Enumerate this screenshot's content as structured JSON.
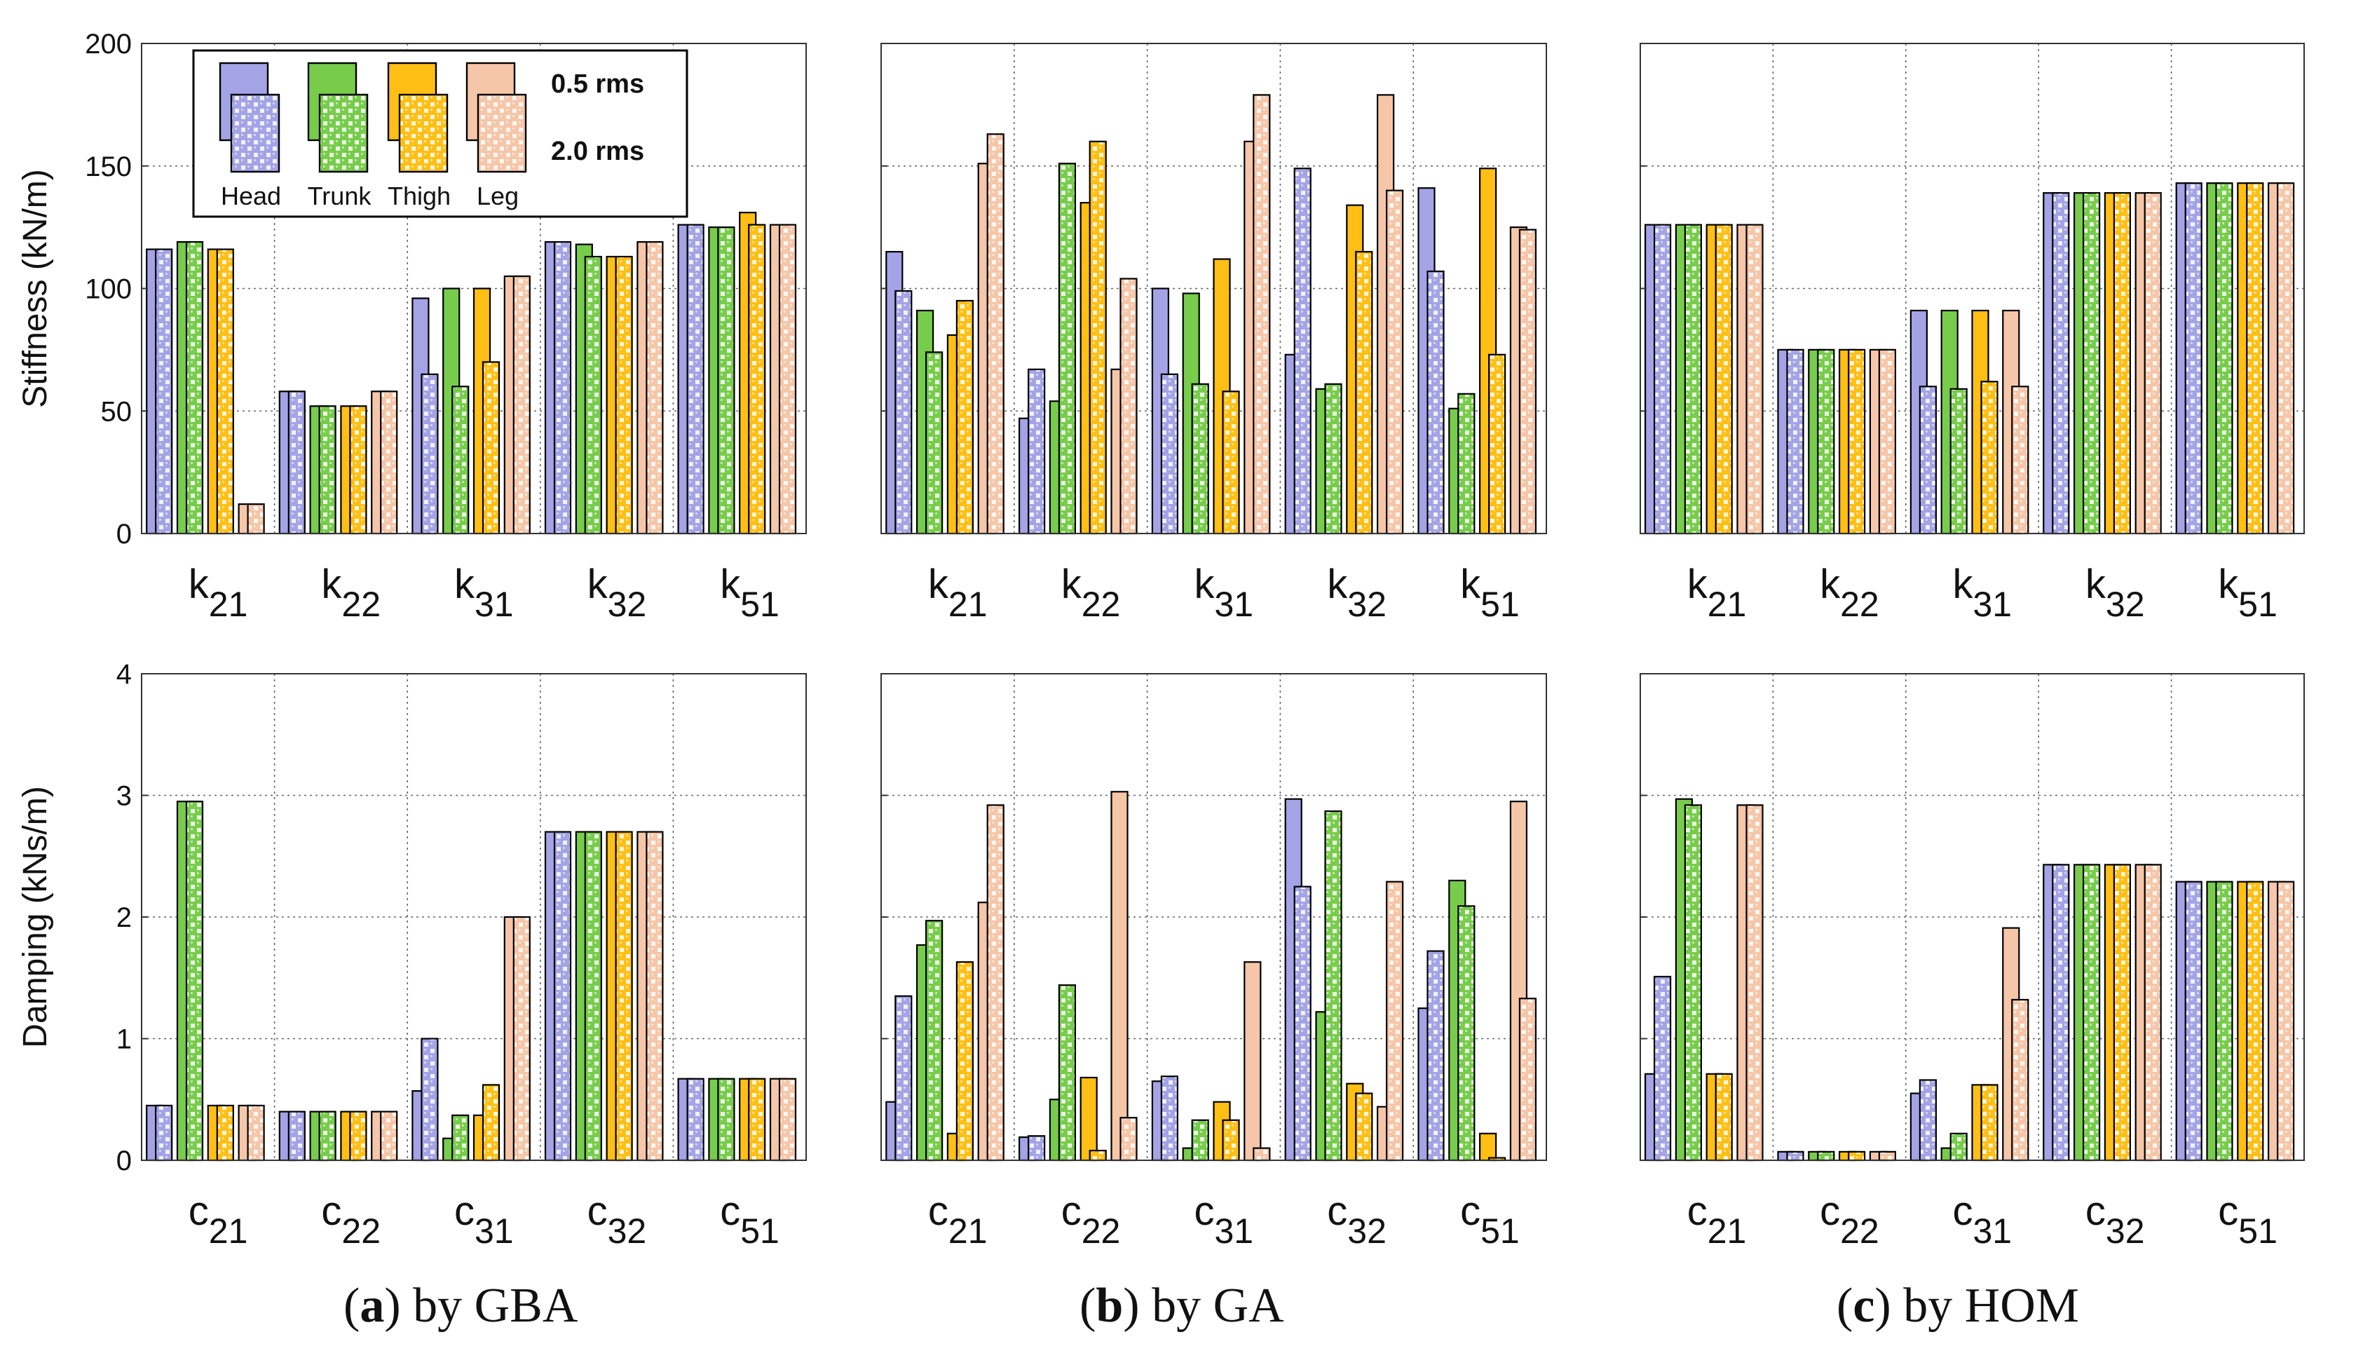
{
  "figure": {
    "legend": {
      "groups": [
        "Head",
        "Trunk",
        "Thigh",
        "Leg"
      ],
      "levels": [
        "0.5 rms",
        "2.0 rms"
      ]
    },
    "colors": {
      "Head": "#a3a3e6",
      "Trunk": "#78cc4c",
      "Thigh": "#ffbf14",
      "Leg": "#f6c6a8",
      "pattern_light": "#ffffff",
      "grid": "#666666",
      "frame": "#000000"
    },
    "row_labels": {
      "stiffness": "Stiffness (kN/m)",
      "damping": "Damping (kNs/m)"
    },
    "captions": [
      {
        "letter": "a",
        "open": "(",
        "close": ")",
        "text": " by GBA"
      },
      {
        "letter": "b",
        "open": "(",
        "close": ")",
        "text": " by GA"
      },
      {
        "letter": "c",
        "open": "(",
        "close": ")",
        "text": " by HOM"
      }
    ]
  },
  "chart_data": [
    {
      "id": "stiffness-gba",
      "type": "bar",
      "row": 0,
      "col": 0,
      "ylabel": "Stiffness (kN/m)",
      "ylim": [
        0,
        200
      ],
      "yticks": [
        0,
        50,
        100,
        150,
        200
      ],
      "grid": true,
      "legend_position": "top-left",
      "categories": [
        {
          "base": "k",
          "sub": "21"
        },
        {
          "base": "k",
          "sub": "22"
        },
        {
          "base": "k",
          "sub": "31"
        },
        {
          "base": "k",
          "sub": "32"
        },
        {
          "base": "k",
          "sub": "51"
        }
      ],
      "series": [
        {
          "name": "Head 0.5 rms",
          "group": "Head",
          "level": "0.5 rms",
          "values": [
            116,
            58,
            96,
            119,
            126
          ]
        },
        {
          "name": "Head 2.0 rms",
          "group": "Head",
          "level": "2.0 rms",
          "values": [
            116,
            58,
            65,
            119,
            126
          ]
        },
        {
          "name": "Trunk 0.5 rms",
          "group": "Trunk",
          "level": "0.5 rms",
          "values": [
            119,
            52,
            100,
            118,
            125
          ]
        },
        {
          "name": "Trunk 2.0 rms",
          "group": "Trunk",
          "level": "2.0 rms",
          "values": [
            119,
            52,
            60,
            113,
            125
          ]
        },
        {
          "name": "Thigh 0.5 rms",
          "group": "Thigh",
          "level": "0.5 rms",
          "values": [
            116,
            52,
            100,
            113,
            131
          ]
        },
        {
          "name": "Thigh 2.0 rms",
          "group": "Thigh",
          "level": "2.0 rms",
          "values": [
            116,
            52,
            70,
            113,
            126
          ]
        },
        {
          "name": "Leg 0.5 rms",
          "group": "Leg",
          "level": "0.5 rms",
          "values": [
            12,
            58,
            105,
            119,
            126
          ]
        },
        {
          "name": "Leg 2.0 rms",
          "group": "Leg",
          "level": "2.0 rms",
          "values": [
            12,
            58,
            105,
            119,
            126
          ]
        }
      ]
    },
    {
      "id": "stiffness-ga",
      "type": "bar",
      "row": 0,
      "col": 1,
      "ylabel": "",
      "ylim": [
        0,
        200
      ],
      "yticks": [
        0,
        50,
        100,
        150,
        200
      ],
      "grid": true,
      "categories": [
        {
          "base": "k",
          "sub": "21"
        },
        {
          "base": "k",
          "sub": "22"
        },
        {
          "base": "k",
          "sub": "31"
        },
        {
          "base": "k",
          "sub": "32"
        },
        {
          "base": "k",
          "sub": "51"
        }
      ],
      "series": [
        {
          "name": "Head 0.5 rms",
          "group": "Head",
          "level": "0.5 rms",
          "values": [
            115,
            47,
            100,
            73,
            141
          ]
        },
        {
          "name": "Head 2.0 rms",
          "group": "Head",
          "level": "2.0 rms",
          "values": [
            99,
            67,
            65,
            149,
            107
          ]
        },
        {
          "name": "Trunk 0.5 rms",
          "group": "Trunk",
          "level": "0.5 rms",
          "values": [
            91,
            54,
            98,
            59,
            51
          ]
        },
        {
          "name": "Trunk 2.0 rms",
          "group": "Trunk",
          "level": "2.0 rms",
          "values": [
            74,
            151,
            61,
            61,
            57
          ]
        },
        {
          "name": "Thigh 0.5 rms",
          "group": "Thigh",
          "level": "0.5 rms",
          "values": [
            81,
            135,
            112,
            134,
            149
          ]
        },
        {
          "name": "Thigh 2.0 rms",
          "group": "Thigh",
          "level": "2.0 rms",
          "values": [
            95,
            160,
            58,
            115,
            73
          ]
        },
        {
          "name": "Leg 0.5 rms",
          "group": "Leg",
          "level": "0.5 rms",
          "values": [
            151,
            67,
            160,
            179,
            125
          ]
        },
        {
          "name": "Leg 2.0 rms",
          "group": "Leg",
          "level": "2.0 rms",
          "values": [
            163,
            104,
            179,
            140,
            124
          ]
        }
      ]
    },
    {
      "id": "stiffness-hom",
      "type": "bar",
      "row": 0,
      "col": 2,
      "ylabel": "",
      "ylim": [
        0,
        200
      ],
      "yticks": [
        0,
        50,
        100,
        150,
        200
      ],
      "grid": true,
      "categories": [
        {
          "base": "k",
          "sub": "21"
        },
        {
          "base": "k",
          "sub": "22"
        },
        {
          "base": "k",
          "sub": "31"
        },
        {
          "base": "k",
          "sub": "32"
        },
        {
          "base": "k",
          "sub": "51"
        }
      ],
      "series": [
        {
          "name": "Head 0.5 rms",
          "group": "Head",
          "level": "0.5 rms",
          "values": [
            126,
            75,
            91,
            139,
            143
          ]
        },
        {
          "name": "Head 2.0 rms",
          "group": "Head",
          "level": "2.0 rms",
          "values": [
            126,
            75,
            60,
            139,
            143
          ]
        },
        {
          "name": "Trunk 0.5 rms",
          "group": "Trunk",
          "level": "0.5 rms",
          "values": [
            126,
            75,
            91,
            139,
            143
          ]
        },
        {
          "name": "Trunk 2.0 rms",
          "group": "Trunk",
          "level": "2.0 rms",
          "values": [
            126,
            75,
            59,
            139,
            143
          ]
        },
        {
          "name": "Thigh 0.5 rms",
          "group": "Thigh",
          "level": "0.5 rms",
          "values": [
            126,
            75,
            91,
            139,
            143
          ]
        },
        {
          "name": "Thigh 2.0 rms",
          "group": "Thigh",
          "level": "2.0 rms",
          "values": [
            126,
            75,
            62,
            139,
            143
          ]
        },
        {
          "name": "Leg 0.5 rms",
          "group": "Leg",
          "level": "0.5 rms",
          "values": [
            126,
            75,
            91,
            139,
            143
          ]
        },
        {
          "name": "Leg 2.0 rms",
          "group": "Leg",
          "level": "2.0 rms",
          "values": [
            126,
            75,
            60,
            139,
            143
          ]
        }
      ]
    },
    {
      "id": "damping-gba",
      "type": "bar",
      "row": 1,
      "col": 0,
      "ylabel": "Damping (kNs/m)",
      "ylim": [
        0,
        4
      ],
      "yticks": [
        0,
        1,
        2,
        3,
        4
      ],
      "grid": true,
      "categories": [
        {
          "base": "c",
          "sub": "21"
        },
        {
          "base": "c",
          "sub": "22"
        },
        {
          "base": "c",
          "sub": "31"
        },
        {
          "base": "c",
          "sub": "32"
        },
        {
          "base": "c",
          "sub": "51"
        }
      ],
      "series": [
        {
          "name": "Head 0.5 rms",
          "group": "Head",
          "level": "0.5 rms",
          "values": [
            0.45,
            0.4,
            0.57,
            2.7,
            0.67
          ]
        },
        {
          "name": "Head 2.0 rms",
          "group": "Head",
          "level": "2.0 rms",
          "values": [
            0.45,
            0.4,
            1.0,
            2.7,
            0.67
          ]
        },
        {
          "name": "Trunk 0.5 rms",
          "group": "Trunk",
          "level": "0.5 rms",
          "values": [
            2.95,
            0.4,
            0.18,
            2.7,
            0.67
          ]
        },
        {
          "name": "Trunk 2.0 rms",
          "group": "Trunk",
          "level": "2.0 rms",
          "values": [
            2.95,
            0.4,
            0.37,
            2.7,
            0.67
          ]
        },
        {
          "name": "Thigh 0.5 rms",
          "group": "Thigh",
          "level": "0.5 rms",
          "values": [
            0.45,
            0.4,
            0.37,
            2.7,
            0.67
          ]
        },
        {
          "name": "Thigh 2.0 rms",
          "group": "Thigh",
          "level": "2.0 rms",
          "values": [
            0.45,
            0.4,
            0.62,
            2.7,
            0.67
          ]
        },
        {
          "name": "Leg 0.5 rms",
          "group": "Leg",
          "level": "0.5 rms",
          "values": [
            0.45,
            0.4,
            2.0,
            2.7,
            0.67
          ]
        },
        {
          "name": "Leg 2.0 rms",
          "group": "Leg",
          "level": "2.0 rms",
          "values": [
            0.45,
            0.4,
            2.0,
            2.7,
            0.67
          ]
        }
      ]
    },
    {
      "id": "damping-ga",
      "type": "bar",
      "row": 1,
      "col": 1,
      "ylabel": "",
      "ylim": [
        0,
        4
      ],
      "yticks": [
        0,
        1,
        2,
        3,
        4
      ],
      "grid": true,
      "categories": [
        {
          "base": "c",
          "sub": "21"
        },
        {
          "base": "c",
          "sub": "22"
        },
        {
          "base": "c",
          "sub": "31"
        },
        {
          "base": "c",
          "sub": "32"
        },
        {
          "base": "c",
          "sub": "51"
        }
      ],
      "series": [
        {
          "name": "Head 0.5 rms",
          "group": "Head",
          "level": "0.5 rms",
          "values": [
            0.48,
            0.19,
            0.65,
            2.97,
            1.25
          ]
        },
        {
          "name": "Head 2.0 rms",
          "group": "Head",
          "level": "2.0 rms",
          "values": [
            1.35,
            0.2,
            0.69,
            2.25,
            1.72
          ]
        },
        {
          "name": "Trunk 0.5 rms",
          "group": "Trunk",
          "level": "0.5 rms",
          "values": [
            1.77,
            0.5,
            0.1,
            1.22,
            2.3
          ]
        },
        {
          "name": "Trunk 2.0 rms",
          "group": "Trunk",
          "level": "2.0 rms",
          "values": [
            1.97,
            1.44,
            0.33,
            2.87,
            2.09
          ]
        },
        {
          "name": "Thigh 0.5 rms",
          "group": "Thigh",
          "level": "0.5 rms",
          "values": [
            0.22,
            0.68,
            0.48,
            0.63,
            0.22
          ]
        },
        {
          "name": "Thigh 2.0 rms",
          "group": "Thigh",
          "level": "2.0 rms",
          "values": [
            1.63,
            0.08,
            0.33,
            0.55,
            0.02
          ]
        },
        {
          "name": "Leg 0.5 rms",
          "group": "Leg",
          "level": "0.5 rms",
          "values": [
            2.12,
            3.03,
            1.63,
            0.44,
            2.95
          ]
        },
        {
          "name": "Leg 2.0 rms",
          "group": "Leg",
          "level": "2.0 rms",
          "values": [
            2.92,
            0.35,
            0.1,
            2.29,
            1.33
          ]
        }
      ]
    },
    {
      "id": "damping-hom",
      "type": "bar",
      "row": 1,
      "col": 2,
      "ylabel": "",
      "ylim": [
        0,
        4
      ],
      "yticks": [
        0,
        1,
        2,
        3,
        4
      ],
      "grid": true,
      "categories": [
        {
          "base": "c",
          "sub": "21"
        },
        {
          "base": "c",
          "sub": "22"
        },
        {
          "base": "c",
          "sub": "31"
        },
        {
          "base": "c",
          "sub": "32"
        },
        {
          "base": "c",
          "sub": "51"
        }
      ],
      "series": [
        {
          "name": "Head 0.5 rms",
          "group": "Head",
          "level": "0.5 rms",
          "values": [
            0.71,
            0.07,
            0.55,
            2.43,
            2.29
          ]
        },
        {
          "name": "Head 2.0 rms",
          "group": "Head",
          "level": "2.0 rms",
          "values": [
            1.51,
            0.07,
            0.66,
            2.43,
            2.29
          ]
        },
        {
          "name": "Trunk 0.5 rms",
          "group": "Trunk",
          "level": "0.5 rms",
          "values": [
            2.97,
            0.07,
            0.1,
            2.43,
            2.29
          ]
        },
        {
          "name": "Trunk 2.0 rms",
          "group": "Trunk",
          "level": "2.0 rms",
          "values": [
            2.92,
            0.07,
            0.22,
            2.43,
            2.29
          ]
        },
        {
          "name": "Thigh 0.5 rms",
          "group": "Thigh",
          "level": "0.5 rms",
          "values": [
            0.71,
            0.07,
            0.62,
            2.43,
            2.29
          ]
        },
        {
          "name": "Thigh 2.0 rms",
          "group": "Thigh",
          "level": "2.0 rms",
          "values": [
            0.71,
            0.07,
            0.62,
            2.43,
            2.29
          ]
        },
        {
          "name": "Leg 0.5 rms",
          "group": "Leg",
          "level": "0.5 rms",
          "values": [
            2.92,
            0.07,
            1.91,
            2.43,
            2.29
          ]
        },
        {
          "name": "Leg 2.0 rms",
          "group": "Leg",
          "level": "2.0 rms",
          "values": [
            2.92,
            0.07,
            1.32,
            2.43,
            2.29
          ]
        }
      ]
    }
  ]
}
